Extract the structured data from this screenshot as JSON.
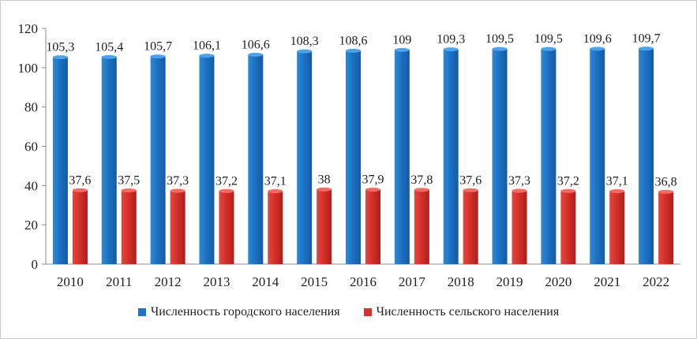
{
  "chart_data": {
    "type": "bar",
    "categories": [
      "2010",
      "2011",
      "2012",
      "2013",
      "2014",
      "2015",
      "2016",
      "2017",
      "2018",
      "2019",
      "2020",
      "2021",
      "2022"
    ],
    "series": [
      {
        "name": "Численность городского населения",
        "color": "#1f73c4",
        "values": [
          105.3,
          105.4,
          105.7,
          106.1,
          106.6,
          108.3,
          108.6,
          109,
          109.3,
          109.5,
          109.5,
          109.6,
          109.7
        ],
        "labels": [
          "105,3",
          "105,4",
          "105,7",
          "106,1",
          "106,6",
          "108,3",
          "108,6",
          "109",
          "109,3",
          "109,5",
          "109,5",
          "109,6",
          "109,7"
        ]
      },
      {
        "name": "Численность сельского населения",
        "color": "#d9302c",
        "values": [
          37.6,
          37.5,
          37.3,
          37.2,
          37.1,
          38,
          37.9,
          37.8,
          37.6,
          37.3,
          37.2,
          37.1,
          36.8
        ],
        "labels": [
          "37,6",
          "37,5",
          "37,3",
          "37,2",
          "37,1",
          "38",
          "37,9",
          "37,8",
          "37,6",
          "37,3",
          "37,2",
          "37,1",
          "36,8"
        ]
      }
    ],
    "ylim": [
      0,
      120
    ],
    "yticks": [
      0,
      20,
      40,
      60,
      80,
      100,
      120
    ],
    "grid": false,
    "legend_position": "bottom"
  }
}
